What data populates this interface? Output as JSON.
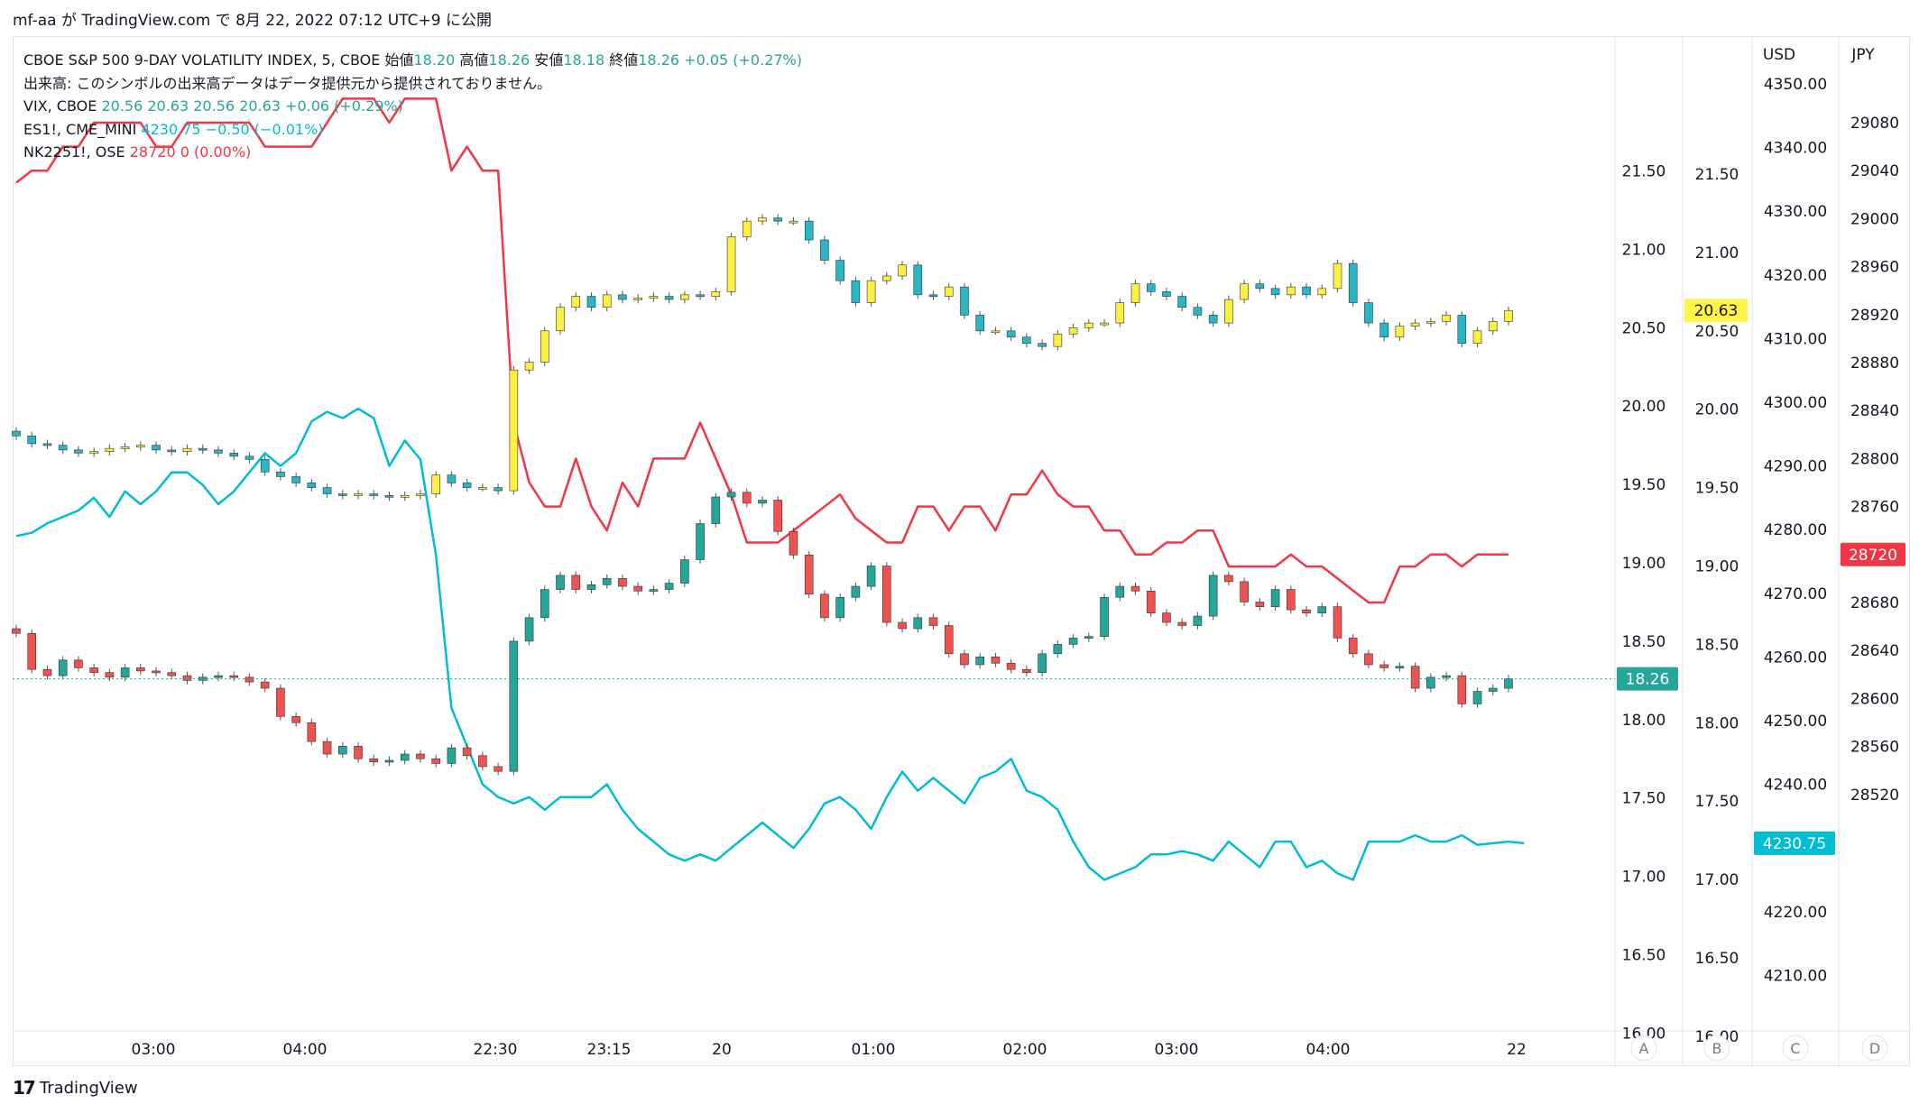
{
  "header": {
    "attribution": "mf-aa が TradingView.com で 8月 22, 2022 07:12 UTC+9 に公開"
  },
  "legend": {
    "line1": {
      "symbol": "CBOE S&P 500 9-DAY VOLATILITY INDEX, 5, CBOE",
      "open_label": "始値",
      "open": "18.20",
      "high_label": "高値",
      "high": "18.26",
      "low_label": "安値",
      "low": "18.18",
      "close_label": "終値",
      "close": "18.26",
      "change": "+0.05 (+0.27%)"
    },
    "line2": "出来高: このシンボルの出来高データはデータ提供元から提供されておりません。",
    "line3": {
      "symbol": "VIX, CBOE",
      "values": "20.56  20.63  20.56  20.63  +0.06 (+0.29%)"
    },
    "line4": {
      "symbol": "ES1!, CME_MINI",
      "values": "4230.75  −0.50 (−0.01%)"
    },
    "line5": {
      "symbol": "NK2251!, OSE",
      "values": "28720  0 (0.00%)"
    }
  },
  "footer": {
    "brand": "TradingView",
    "logo": "17"
  },
  "colors": {
    "up": "#26a69a",
    "down": "#ef5350",
    "vix_up": "#fbef41",
    "vix_down": "#29b6c6",
    "es": "#00bcd4",
    "nk": "#f23645",
    "vix_label_bg": "#fff24a",
    "grid": "#e0e3eb",
    "text": "#131722"
  },
  "chart_data": {
    "type": "line",
    "x_tick_labels": [
      "03:00",
      "04:00",
      "22:30",
      "23:15",
      "20",
      "01:00",
      "02:00",
      "03:00",
      "04:00",
      "22"
    ],
    "scale_labels": [
      "A",
      "B",
      "C",
      "D"
    ],
    "axes": {
      "A": {
        "ticks": [
          "21.50",
          "21.00",
          "20.50",
          "20.00",
          "19.50",
          "19.00",
          "18.50",
          "18.00",
          "17.50",
          "17.00",
          "16.50",
          "16.00"
        ]
      },
      "B": {
        "ticks": [
          "21.50",
          "21.00",
          "20.50",
          "20.00",
          "19.50",
          "19.00",
          "18.50",
          "18.00",
          "17.50",
          "17.00",
          "16.50",
          "16.00"
        ]
      },
      "C": {
        "unit": "USD",
        "ticks": [
          "4350.00",
          "4340.00",
          "4330.00",
          "4320.00",
          "4310.00",
          "4300.00",
          "4290.00",
          "4280.00",
          "4270.00",
          "4260.00",
          "4250.00",
          "4240.00",
          "4230.00",
          "4220.00",
          "4210.00"
        ]
      },
      "D": {
        "unit": "JPY",
        "ticks": [
          "29080",
          "29040",
          "29000",
          "28960",
          "28920",
          "28880",
          "28840",
          "28800",
          "28760",
          "28720",
          "28680",
          "28640",
          "28600",
          "28560",
          "28520"
        ]
      }
    },
    "last_values": {
      "vix9d": "18.26",
      "vix": "20.63",
      "es": "4230.75",
      "nk": "28720"
    },
    "vix9d_close": [
      18.55,
      18.32,
      18.28,
      18.38,
      18.33,
      18.3,
      18.27,
      18.33,
      18.31,
      18.3,
      18.28,
      18.25,
      18.27,
      18.28,
      18.27,
      18.24,
      18.2,
      18.02,
      17.98,
      17.86,
      17.78,
      17.83,
      17.75,
      17.73,
      17.74,
      17.78,
      17.75,
      17.72,
      17.82,
      17.77,
      17.7,
      17.67,
      18.5,
      18.65,
      18.83,
      18.92,
      18.83,
      18.86,
      18.9,
      18.85,
      18.82,
      18.83,
      18.87,
      19.02,
      19.25,
      19.42,
      19.45,
      19.38,
      19.4,
      19.2,
      19.05,
      18.8,
      18.65,
      18.78,
      18.85,
      18.98,
      18.62,
      18.58,
      18.65,
      18.6,
      18.42,
      18.35,
      18.4,
      18.36,
      18.32,
      18.3,
      18.42,
      18.48,
      18.52,
      18.53,
      18.78,
      18.85,
      18.82,
      18.68,
      18.62,
      18.6,
      18.66,
      18.92,
      18.88,
      18.75,
      18.72,
      18.83,
      18.7,
      18.68,
      18.72,
      18.52,
      18.42,
      18.35,
      18.33,
      18.34,
      18.2,
      18.27,
      18.28,
      18.1,
      18.18,
      18.2,
      18.26
    ],
    "vix_close": [
      19.83,
      19.78,
      19.77,
      19.74,
      19.72,
      19.73,
      19.75,
      19.76,
      19.77,
      19.74,
      19.73,
      19.75,
      19.74,
      19.72,
      19.7,
      19.68,
      19.6,
      19.57,
      19.53,
      19.5,
      19.46,
      19.45,
      19.46,
      19.45,
      19.44,
      19.45,
      19.46,
      19.58,
      19.53,
      19.5,
      19.5,
      19.48,
      20.25,
      20.3,
      20.5,
      20.65,
      20.72,
      20.65,
      20.73,
      20.7,
      20.71,
      20.72,
      20.7,
      20.73,
      20.72,
      20.75,
      21.1,
      21.2,
      21.22,
      21.2,
      21.2,
      21.08,
      20.95,
      20.82,
      20.68,
      20.82,
      20.85,
      20.92,
      20.73,
      20.72,
      20.78,
      20.6,
      20.5,
      20.5,
      20.46,
      20.42,
      20.4,
      20.48,
      20.52,
      20.55,
      20.55,
      20.68,
      20.8,
      20.75,
      20.72,
      20.65,
      20.6,
      20.55,
      20.7,
      20.8,
      20.77,
      20.73,
      20.78,
      20.73,
      20.77,
      20.93,
      20.68,
      20.55,
      20.46,
      20.53,
      20.55,
      20.56,
      20.6,
      20.42,
      20.5,
      20.56,
      20.63
    ],
    "es_close": [
      4279,
      4279.5,
      4281,
      4282,
      4283,
      4285,
      4282,
      4286,
      4284,
      4286,
      4289,
      4289,
      4287,
      4284,
      4286,
      4289,
      4292,
      4290,
      4292,
      4297,
      4298.5,
      4297.5,
      4299,
      4297.5,
      4290,
      4294,
      4291,
      4276,
      4252,
      4246,
      4240,
      4238,
      4237,
      4238,
      4236,
      4238,
      4238,
      4238,
      4240,
      4236,
      4233,
      4231,
      4229,
      4228,
      4229,
      4228,
      4230,
      4232,
      4234,
      4232,
      4230,
      4233,
      4237,
      4238,
      4236,
      4233,
      4238,
      4242,
      4239,
      4241,
      4239,
      4237,
      4241,
      4242,
      4244,
      4239,
      4238,
      4236,
      4231,
      4227,
      4225,
      4226,
      4227,
      4229,
      4229,
      4229.5,
      4229,
      4228,
      4231,
      4229,
      4227,
      4231,
      4231,
      4227,
      4228,
      4226,
      4225,
      4231,
      4231,
      4231,
      4232,
      4231,
      4231,
      4232,
      4230.5,
      4230.75,
      4231,
      4230.75
    ],
    "nk_close": [
      29030,
      29040,
      29040,
      29060,
      29060,
      29080,
      29080,
      29080,
      29080,
      29060,
      29060,
      29080,
      29080,
      29080,
      29080,
      29080,
      29060,
      29060,
      29060,
      29060,
      29080,
      29100,
      29100,
      29100,
      29080,
      29100,
      29100,
      29100,
      29040,
      29060,
      29040,
      29040,
      28830,
      28780,
      28760,
      28760,
      28800,
      28760,
      28740,
      28780,
      28760,
      28800,
      28800,
      28800,
      28830,
      28800,
      28770,
      28730,
      28730,
      28730,
      28740,
      28750,
      28760,
      28770,
      28750,
      28740,
      28730,
      28730,
      28760,
      28760,
      28740,
      28760,
      28760,
      28740,
      28770,
      28770,
      28790,
      28770,
      28760,
      28760,
      28740,
      28740,
      28720,
      28720,
      28730,
      28730,
      28740,
      28740,
      28710,
      28710,
      28710,
      28710,
      28720,
      28710,
      28710,
      28700,
      28690,
      28680,
      28680,
      28710,
      28710,
      28720,
      28720,
      28710,
      28720,
      28720,
      28720
    ]
  }
}
